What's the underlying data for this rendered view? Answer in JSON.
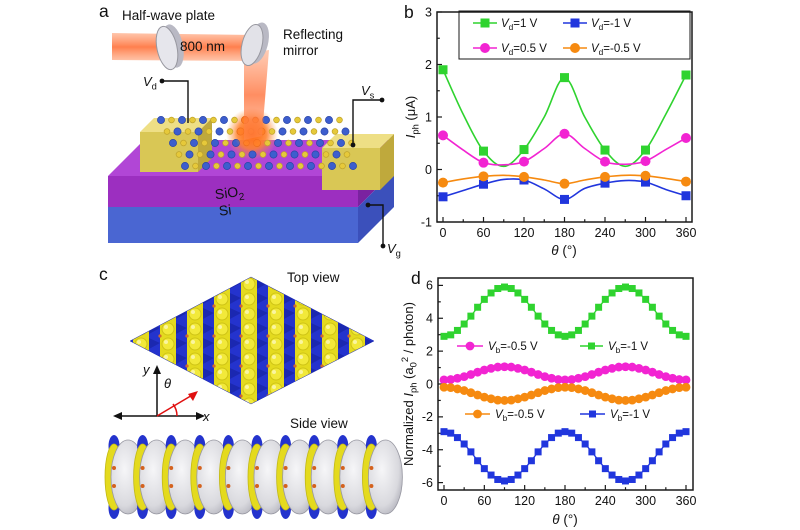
{
  "figure": {
    "panel_labels": {
      "a": "a",
      "b": "b",
      "c": "c",
      "d": "d"
    }
  },
  "panel_a": {
    "half_wave_plate": "Half-wave plate",
    "wavelength": "800 nm",
    "reflecting_mirror_line1": "Reflecting",
    "reflecting_mirror_line2": "mirror",
    "label_vd": [
      {
        "t": "V",
        "i": true
      },
      {
        "t": "d",
        "sub": true
      }
    ],
    "label_vs": [
      {
        "t": "V",
        "i": true
      },
      {
        "t": "s",
        "sub": true
      }
    ],
    "label_vg": [
      {
        "t": "V",
        "i": true
      },
      {
        "t": "g",
        "sub": true
      }
    ],
    "label_sio2": [
      {
        "t": "SiO"
      },
      {
        "t": "2",
        "sub": true
      }
    ],
    "label_si": "Si",
    "colors": {
      "beam": "#ff6a3c",
      "electrode_front": "#d9c755",
      "electrode_top": "#eedf85",
      "electrode_side": "#bfa93c",
      "sio2_front": "#9c2fc0",
      "sio2_top": "#b146d6",
      "sio2_side": "#7a22a0",
      "si_front": "#4a66d2",
      "si_side": "#3b50bb",
      "atom_blue": "#3d5ece",
      "atom_yellow": "#e6c93a",
      "spot": "#ff8a30",
      "mirror": "#c9c9d2"
    }
  },
  "panel_c": {
    "top_view": "Top view",
    "side_view": "Side view",
    "axis_x": "x",
    "axis_y": "y",
    "theta": "θ",
    "colors": {
      "blue": "#2433cd",
      "yellow": "#e4da1e",
      "ball": "#f2e93a",
      "red_axis": "#e01010"
    }
  },
  "chart_data": [
    {
      "id": "b",
      "type": "line",
      "xlabel": [
        {
          "t": "θ",
          "i": true
        },
        {
          "t": " (°)"
        }
      ],
      "ylabel": [
        {
          "t": "I",
          "i": true
        },
        {
          "t": "ph",
          "sub": true
        },
        {
          "t": " (μA)"
        }
      ],
      "xlim": [
        0,
        360
      ],
      "ylim": [
        -1,
        3
      ],
      "xticks": [
        0,
        60,
        120,
        180,
        240,
        300,
        360
      ],
      "yticks": [
        -1,
        0,
        1,
        2,
        3
      ],
      "grid": false,
      "legend_position": "top-inside-boxed",
      "series": [
        {
          "name": [
            {
              "t": "V",
              "i": true
            },
            {
              "t": "d",
              "sub": true
            },
            {
              "t": "=1 V"
            }
          ],
          "color": "#2fd32f",
          "marker": "square",
          "x": [
            0,
            60,
            120,
            180,
            240,
            300,
            360
          ],
          "y": [
            1.9,
            0.35,
            0.38,
            1.75,
            0.37,
            0.37,
            1.8
          ],
          "curve_x": [
            0,
            30,
            60,
            90,
            120,
            150,
            180,
            210,
            240,
            270,
            300,
            330,
            360
          ],
          "curve_y": [
            1.9,
            1.05,
            0.35,
            0.06,
            0.38,
            1.0,
            1.75,
            1.0,
            0.37,
            0.06,
            0.37,
            1.05,
            1.8
          ]
        },
        {
          "name": [
            {
              "t": "V",
              "i": true
            },
            {
              "t": "d",
              "sub": true
            },
            {
              "t": "=-1 V"
            }
          ],
          "color": "#2136dd",
          "marker": "square",
          "x": [
            0,
            60,
            120,
            180,
            240,
            300,
            360
          ],
          "y": [
            -0.52,
            -0.28,
            -0.2,
            -0.57,
            -0.26,
            -0.24,
            -0.5
          ],
          "curve_x": [
            0,
            30,
            60,
            90,
            120,
            150,
            180,
            210,
            240,
            270,
            300,
            330,
            360
          ],
          "curve_y": [
            -0.52,
            -0.4,
            -0.28,
            -0.19,
            -0.2,
            -0.37,
            -0.57,
            -0.36,
            -0.26,
            -0.21,
            -0.24,
            -0.38,
            -0.5
          ]
        },
        {
          "name": [
            {
              "t": "V",
              "i": true
            },
            {
              "t": "d",
              "sub": true
            },
            {
              "t": "=0.5 V"
            }
          ],
          "color": "#f224d2",
          "marker": "circle",
          "x": [
            0,
            60,
            120,
            180,
            240,
            300,
            360
          ],
          "y": [
            0.65,
            0.13,
            0.15,
            0.68,
            0.15,
            0.16,
            0.6
          ],
          "curve_x": [
            0,
            30,
            60,
            90,
            120,
            150,
            180,
            210,
            240,
            270,
            300,
            330,
            360
          ],
          "curve_y": [
            0.65,
            0.37,
            0.13,
            0.09,
            0.15,
            0.4,
            0.68,
            0.4,
            0.15,
            0.1,
            0.16,
            0.38,
            0.6
          ]
        },
        {
          "name": [
            {
              "t": "V",
              "i": true
            },
            {
              "t": "d",
              "sub": true
            },
            {
              "t": "=-0.5 V"
            }
          ],
          "color": "#f68a10",
          "marker": "circle",
          "x": [
            0,
            60,
            120,
            180,
            240,
            300,
            360
          ],
          "y": [
            -0.25,
            -0.13,
            -0.14,
            -0.27,
            -0.14,
            -0.12,
            -0.23
          ],
          "curve_x": [
            0,
            30,
            60,
            90,
            120,
            150,
            180,
            210,
            240,
            270,
            300,
            330,
            360
          ],
          "curve_y": [
            -0.25,
            -0.18,
            -0.13,
            -0.11,
            -0.14,
            -0.2,
            -0.27,
            -0.2,
            -0.14,
            -0.11,
            -0.12,
            -0.17,
            -0.23
          ]
        }
      ]
    },
    {
      "id": "d",
      "type": "line",
      "xlabel": [
        {
          "t": "θ",
          "i": true
        },
        {
          "t": " (°)"
        }
      ],
      "ylabel": [
        {
          "t": "Normalized "
        },
        {
          "t": "I",
          "i": true
        },
        {
          "t": "ph",
          "sub": true
        },
        {
          "t": " (a"
        },
        {
          "t": "0",
          "sub": true
        },
        {
          "t": "2",
          "sup": true
        },
        {
          "t": " / photon)"
        }
      ],
      "xlim": [
        0,
        360
      ],
      "ylim": [
        -6.45,
        6.45
      ],
      "xticks": [
        0,
        60,
        120,
        180,
        240,
        300,
        360
      ],
      "yticks": [
        -6,
        -4,
        -2,
        0,
        2,
        4,
        6
      ],
      "grid": false,
      "legend_position": "two-rows-inside",
      "series": [
        {
          "name": [
            {
              "t": "V",
              "i": true
            },
            {
              "t": "b",
              "sub": true
            },
            {
              "t": "=-0.5 V"
            }
          ],
          "color": "#f224d2",
          "marker": "circle",
          "x": [
            0,
            10,
            20,
            30,
            40,
            50,
            60,
            70,
            80,
            90,
            100,
            110,
            120,
            130,
            140,
            150,
            160,
            170,
            180,
            190,
            200,
            210,
            220,
            230,
            240,
            250,
            260,
            270,
            280,
            290,
            300,
            310,
            320,
            330,
            340,
            350,
            360
          ],
          "y": [
            0.25,
            0.27,
            0.35,
            0.45,
            0.58,
            0.72,
            0.85,
            0.95,
            1.03,
            1.05,
            1.03,
            0.95,
            0.85,
            0.72,
            0.58,
            0.45,
            0.35,
            0.27,
            0.25,
            0.27,
            0.35,
            0.45,
            0.58,
            0.72,
            0.85,
            0.95,
            1.03,
            1.05,
            1.03,
            0.95,
            0.85,
            0.72,
            0.58,
            0.45,
            0.35,
            0.27,
            0.25
          ]
        },
        {
          "name": [
            {
              "t": "V",
              "i": true
            },
            {
              "t": "b",
              "sub": true
            },
            {
              "t": "=-1 V"
            }
          ],
          "color": "#2fd32f",
          "marker": "square",
          "x": [
            0,
            10,
            20,
            30,
            40,
            50,
            60,
            70,
            80,
            90,
            100,
            110,
            120,
            130,
            140,
            150,
            160,
            170,
            180,
            190,
            200,
            210,
            220,
            230,
            240,
            250,
            260,
            270,
            280,
            290,
            300,
            310,
            320,
            330,
            340,
            350,
            360
          ],
          "y": [
            2.9,
            2.99,
            3.26,
            3.65,
            4.13,
            4.67,
            5.15,
            5.54,
            5.81,
            5.9,
            5.81,
            5.54,
            5.15,
            4.67,
            4.13,
            3.65,
            3.26,
            2.99,
            2.9,
            2.99,
            3.26,
            3.65,
            4.13,
            4.67,
            5.15,
            5.54,
            5.81,
            5.9,
            5.81,
            5.54,
            5.15,
            4.67,
            4.13,
            3.65,
            3.26,
            2.99,
            2.9
          ]
        },
        {
          "name": [
            {
              "t": "V",
              "i": true
            },
            {
              "t": "b",
              "sub": true
            },
            {
              "t": "=-0.5 V"
            }
          ],
          "color": "#f68a10",
          "marker": "circle",
          "x": [
            0,
            10,
            20,
            30,
            40,
            50,
            60,
            70,
            80,
            90,
            100,
            110,
            120,
            130,
            140,
            150,
            160,
            170,
            180,
            190,
            200,
            210,
            220,
            230,
            240,
            250,
            260,
            270,
            280,
            290,
            300,
            310,
            320,
            330,
            340,
            350,
            360
          ],
          "y": [
            -0.2,
            -0.22,
            -0.3,
            -0.4,
            -0.53,
            -0.67,
            -0.8,
            -0.9,
            -0.98,
            -1.0,
            -0.98,
            -0.9,
            -0.8,
            -0.67,
            -0.53,
            -0.4,
            -0.3,
            -0.22,
            -0.2,
            -0.22,
            -0.3,
            -0.4,
            -0.53,
            -0.67,
            -0.8,
            -0.9,
            -0.98,
            -1.0,
            -0.98,
            -0.9,
            -0.8,
            -0.67,
            -0.53,
            -0.4,
            -0.3,
            -0.22,
            -0.2
          ]
        },
        {
          "name": [
            {
              "t": "V",
              "i": true
            },
            {
              "t": "b",
              "sub": true
            },
            {
              "t": "=-1 V"
            }
          ],
          "color": "#2136dd",
          "marker": "square",
          "x": [
            0,
            10,
            20,
            30,
            40,
            50,
            60,
            70,
            80,
            90,
            100,
            110,
            120,
            130,
            140,
            150,
            160,
            170,
            180,
            190,
            200,
            210,
            220,
            230,
            240,
            250,
            260,
            270,
            280,
            290,
            300,
            310,
            320,
            330,
            340,
            350,
            360
          ],
          "y": [
            -2.9,
            -2.99,
            -3.26,
            -3.65,
            -4.13,
            -4.67,
            -5.15,
            -5.54,
            -5.81,
            -5.9,
            -5.81,
            -5.54,
            -5.15,
            -4.67,
            -4.13,
            -3.65,
            -3.26,
            -2.99,
            -2.9,
            -2.99,
            -3.26,
            -3.65,
            -4.13,
            -4.67,
            -5.15,
            -5.54,
            -5.81,
            -5.9,
            -5.81,
            -5.54,
            -5.15,
            -4.67,
            -4.13,
            -3.65,
            -3.26,
            -2.99,
            -2.9
          ]
        }
      ]
    }
  ]
}
